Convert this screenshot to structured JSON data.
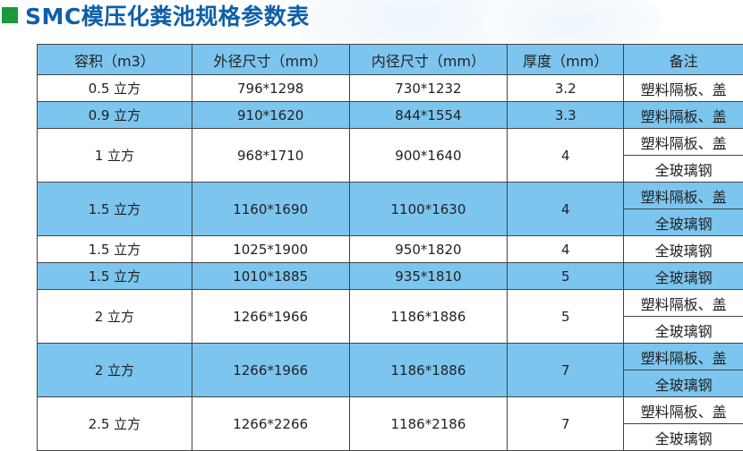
{
  "title": "SMC模压化粪池规格参数表",
  "colors": {
    "header_bg": "#7cc5ef",
    "title": "#0e5fa8",
    "marker": "#1a9a3a"
  },
  "headers": [
    "容积（m3）",
    "外径尺寸（mm）",
    "内径尺寸（mm）",
    "厚度（mm）",
    "备注"
  ],
  "rows": [
    {
      "volume": "0.5 立方",
      "outer": "796*1298",
      "inner": "730*1232",
      "thickness": "3.2",
      "notes": [
        "塑料隔板、盖"
      ],
      "highlight": false
    },
    {
      "volume": "0.9 立方",
      "outer": "910*1620",
      "inner": "844*1554",
      "thickness": "3.3",
      "notes": [
        "塑料隔板、盖"
      ],
      "highlight": true
    },
    {
      "volume": "1 立方",
      "outer": "968*1710",
      "inner": "900*1640",
      "thickness": "4",
      "notes": [
        "塑料隔板、盖",
        "全玻璃钢"
      ],
      "highlight": false
    },
    {
      "volume": "1.5 立方",
      "outer": "1160*1690",
      "inner": "1100*1630",
      "thickness": "4",
      "notes": [
        "塑料隔板、盖",
        "全玻璃钢"
      ],
      "highlight": true
    },
    {
      "volume": "1.5 立方",
      "outer": "1025*1900",
      "inner": "950*1820",
      "thickness": "4",
      "notes": [
        "全玻璃钢"
      ],
      "highlight": false
    },
    {
      "volume": "1.5 立方",
      "outer": "1010*1885",
      "inner": "935*1810",
      "thickness": "5",
      "notes": [
        "全玻璃钢"
      ],
      "highlight": true
    },
    {
      "volume": "2 立方",
      "outer": "1266*1966",
      "inner": "1186*1886",
      "thickness": "5",
      "notes": [
        "塑料隔板、盖",
        "全玻璃钢"
      ],
      "highlight": false
    },
    {
      "volume": "2 立方",
      "outer": "1266*1966",
      "inner": "1186*1886",
      "thickness": "7",
      "notes": [
        "塑料隔板、盖",
        "全玻璃钢"
      ],
      "highlight": true
    },
    {
      "volume": "2.5 立方",
      "outer": "1266*2266",
      "inner": "1186*2186",
      "thickness": "7",
      "notes": [
        "塑料隔板、盖",
        "全玻璃钢"
      ],
      "highlight": false
    }
  ]
}
